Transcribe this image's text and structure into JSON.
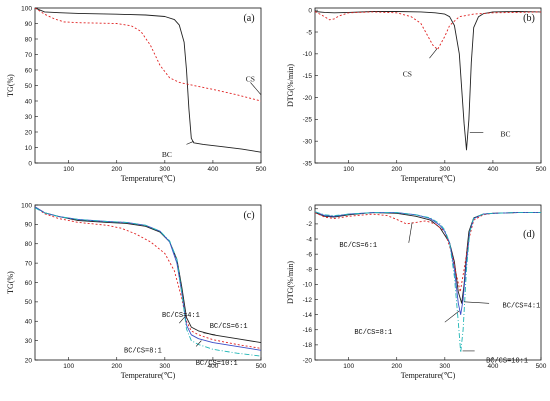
{
  "chart_data": [
    {
      "panel": "(a)",
      "type": "line",
      "xlabel": "Temperature(℃)",
      "ylabel": "TG(%)",
      "xlim": [
        30,
        500
      ],
      "ylim": [
        0,
        100
      ],
      "xticks": [
        100,
        200,
        300,
        400,
        500
      ],
      "yticks": [
        0,
        10,
        20,
        30,
        40,
        50,
        60,
        70,
        80,
        90,
        100
      ],
      "series": [
        {
          "name": "BC",
          "color": "#222222",
          "dash": "solid",
          "x": [
            30,
            50,
            80,
            120,
            200,
            260,
            300,
            320,
            330,
            340,
            345,
            350,
            355,
            360,
            380,
            420,
            460,
            500
          ],
          "y": [
            100,
            97.5,
            97,
            96.5,
            96,
            95.5,
            94.5,
            92.5,
            89,
            78,
            60,
            35,
            16,
            13,
            12,
            10.5,
            9,
            7
          ]
        },
        {
          "name": "CS",
          "color": "#e02020",
          "dash": "dotted",
          "x": [
            30,
            50,
            70,
            90,
            120,
            200,
            230,
            250,
            270,
            290,
            310,
            330,
            360,
            400,
            450,
            500
          ],
          "y": [
            100,
            96,
            93,
            91,
            90.5,
            90,
            88.5,
            85,
            76,
            63,
            55,
            52,
            50,
            47.5,
            44,
            40
          ]
        }
      ],
      "annotations": [
        {
          "text": "CS",
          "x": 460,
          "y": 50
        },
        {
          "text": "BC",
          "x": 325,
          "y": 9
        }
      ]
    },
    {
      "panel": "(b)",
      "type": "line",
      "xlabel": "Temperature(℃)",
      "ylabel": "DTG(%/min)",
      "xlim": [
        30,
        500
      ],
      "ylim": [
        -35,
        0.5
      ],
      "xticks": [
        100,
        200,
        300,
        400,
        500
      ],
      "yticks": [
        0,
        -5,
        -10,
        -15,
        -20,
        -25,
        -30,
        -35
      ],
      "series": [
        {
          "name": "BC",
          "color": "#222222",
          "dash": "solid",
          "x": [
            30,
            50,
            70,
            100,
            150,
            200,
            250,
            280,
            300,
            310,
            320,
            330,
            335,
            340,
            345,
            350,
            355,
            360,
            370,
            380,
            400,
            450,
            500
          ],
          "y": [
            -0.3,
            -0.5,
            -0.6,
            -0.5,
            -0.3,
            -0.3,
            -0.4,
            -0.6,
            -0.9,
            -1.5,
            -3.5,
            -10,
            -18,
            -26,
            -32,
            -25,
            -12,
            -4,
            -1.5,
            -0.8,
            -0.4,
            -0.3,
            -0.4
          ]
        },
        {
          "name": "CS",
          "color": "#e02020",
          "dash": "dotted",
          "x": [
            30,
            50,
            60,
            70,
            80,
            100,
            150,
            200,
            230,
            250,
            265,
            275,
            285,
            290,
            300,
            310,
            330,
            360,
            400,
            450,
            500
          ],
          "y": [
            -0.3,
            -1.5,
            -2.2,
            -2.0,
            -1.3,
            -0.6,
            -0.4,
            -0.6,
            -1.5,
            -3,
            -6,
            -8,
            -9,
            -8,
            -6,
            -3.5,
            -1.5,
            -0.9,
            -0.6,
            -0.5,
            -0.4
          ]
        }
      ],
      "annotations": [
        {
          "text": "CS",
          "x": 250,
          "y": -12
        },
        {
          "text": "BC",
          "x": 395,
          "y": -28
        }
      ]
    },
    {
      "panel": "(c)",
      "type": "line",
      "xlabel": "Temperature(℃)",
      "ylabel": "TG(%)",
      "xlim": [
        30,
        500
      ],
      "ylim": [
        20,
        100
      ],
      "xticks": [
        100,
        200,
        300,
        400,
        500
      ],
      "yticks": [
        20,
        30,
        40,
        50,
        60,
        70,
        80,
        90,
        100
      ],
      "series": [
        {
          "name": "BC/CS=4:1",
          "color": "#222222",
          "dash": "solid",
          "x": [
            30,
            50,
            80,
            120,
            180,
            220,
            260,
            290,
            310,
            325,
            335,
            345,
            355,
            370,
            400,
            450,
            500
          ],
          "y": [
            99,
            96,
            94,
            92,
            91,
            90.5,
            89,
            86,
            81,
            72,
            58,
            42,
            37,
            35,
            33,
            31,
            29
          ]
        },
        {
          "name": "BC/CS=6:1",
          "color": "#e02020",
          "dash": "dotted",
          "x": [
            30,
            50,
            80,
            120,
            180,
            210,
            240,
            270,
            300,
            320,
            335,
            345,
            355,
            370,
            400,
            450,
            500
          ],
          "y": [
            99,
            95.5,
            93,
            91,
            89.5,
            88,
            85,
            81,
            75,
            66,
            52,
            40,
            35,
            33,
            30.5,
            28,
            26
          ]
        },
        {
          "name": "BC/CS=8:1",
          "color": "#3a4cc8",
          "dash": "solid",
          "x": [
            30,
            50,
            80,
            120,
            180,
            220,
            260,
            290,
            310,
            325,
            335,
            345,
            355,
            370,
            400,
            450,
            500
          ],
          "y": [
            99,
            96,
            94,
            92.5,
            91.5,
            91,
            89.5,
            86.5,
            81,
            70,
            55,
            38,
            33,
            31,
            29,
            27,
            25
          ]
        },
        {
          "name": "BC/CS=10:1",
          "color": "#1fb5b5",
          "dash": "dashdot",
          "x": [
            30,
            50,
            80,
            120,
            180,
            220,
            260,
            290,
            310,
            325,
            335,
            345,
            355,
            370,
            400,
            450,
            500
          ],
          "y": [
            98.5,
            96,
            94,
            92.5,
            91.5,
            91,
            89.5,
            86.5,
            81.5,
            72,
            55,
            36,
            30,
            28,
            25.5,
            23.5,
            22
          ]
        }
      ],
      "annotations": [
        {
          "text": "BC/CS=4:1",
          "x": 315,
          "y": 37
        },
        {
          "text": "BC/CS=6:1",
          "x": 410,
          "y": 32
        },
        {
          "text": "BC/CS=8:1",
          "x": 315,
          "y": 26
        },
        {
          "text": "BC/CS=10:1",
          "x": 385,
          "y": 21.5
        }
      ]
    },
    {
      "panel": "(d)",
      "type": "line",
      "xlabel": "Temperature(℃)",
      "ylabel": "DTG(%/min)",
      "xlim": [
        30,
        500
      ],
      "ylim": [
        -20,
        0.5
      ],
      "xticks": [
        100,
        200,
        300,
        400,
        500
      ],
      "yticks": [
        0,
        -2,
        -4,
        -6,
        -8,
        -10,
        -12,
        -14,
        -16,
        -18,
        -20
      ],
      "series": [
        {
          "name": "BC/CS=4:1",
          "color": "#222222",
          "dash": "solid",
          "x": [
            30,
            50,
            70,
            100,
            150,
            200,
            240,
            270,
            290,
            300,
            310,
            320,
            328,
            335,
            340,
            345,
            350,
            360,
            380,
            400,
            450,
            500
          ],
          "y": [
            -0.5,
            -1,
            -1.1,
            -0.8,
            -0.5,
            -0.6,
            -1,
            -1.5,
            -2.5,
            -3.5,
            -4.5,
            -7,
            -11,
            -12.5,
            -10,
            -6,
            -3,
            -1.2,
            -0.7,
            -0.6,
            -0.5,
            -0.5
          ]
        },
        {
          "name": "BC/CS=6:1",
          "color": "#e02020",
          "dash": "dotted",
          "x": [
            30,
            50,
            70,
            100,
            150,
            180,
            200,
            220,
            240,
            260,
            280,
            300,
            315,
            325,
            332,
            340,
            350,
            360,
            380,
            400,
            450,
            500
          ],
          "y": [
            -0.5,
            -1.1,
            -1.3,
            -1,
            -0.7,
            -0.9,
            -1.4,
            -2,
            -1.8,
            -1.6,
            -2,
            -3,
            -6,
            -9,
            -11,
            -8,
            -4,
            -1.5,
            -0.8,
            -0.6,
            -0.5,
            -0.5
          ]
        },
        {
          "name": "BC/CS=8:1",
          "color": "#3a4cc8",
          "dash": "solid",
          "x": [
            30,
            50,
            70,
            100,
            150,
            200,
            240,
            270,
            290,
            300,
            310,
            320,
            328,
            333,
            338,
            345,
            352,
            360,
            380,
            400,
            450,
            500
          ],
          "y": [
            -0.4,
            -0.9,
            -1,
            -0.7,
            -0.5,
            -0.5,
            -0.8,
            -1.3,
            -2.2,
            -3,
            -4.5,
            -8,
            -12.5,
            -14,
            -12,
            -7,
            -3,
            -1.3,
            -0.7,
            -0.6,
            -0.5,
            -0.5
          ]
        },
        {
          "name": "BC/CS=10:1",
          "color": "#1fb5b5",
          "dash": "dashdot",
          "x": [
            30,
            50,
            70,
            100,
            150,
            200,
            240,
            270,
            290,
            300,
            310,
            320,
            328,
            333,
            338,
            345,
            352,
            360,
            380,
            400,
            450,
            500
          ],
          "y": [
            -0.4,
            -0.8,
            -0.9,
            -0.7,
            -0.5,
            -0.5,
            -0.8,
            -1.2,
            -2,
            -2.8,
            -4.5,
            -9,
            -15,
            -19,
            -16,
            -8,
            -3,
            -1.2,
            -0.7,
            -0.6,
            -0.5,
            -0.5
          ]
        }
      ],
      "annotations": [
        {
          "text": "BC/CS=6:1",
          "x": 195,
          "y": -4
        },
        {
          "text": "BC/CS=4:1",
          "x": 395,
          "y": -12.5
        },
        {
          "text": "BC/CS=8:1",
          "x": 220,
          "y": -15
        },
        {
          "text": "BC/CS=10:1",
          "x": 365,
          "y": -19
        }
      ]
    }
  ]
}
